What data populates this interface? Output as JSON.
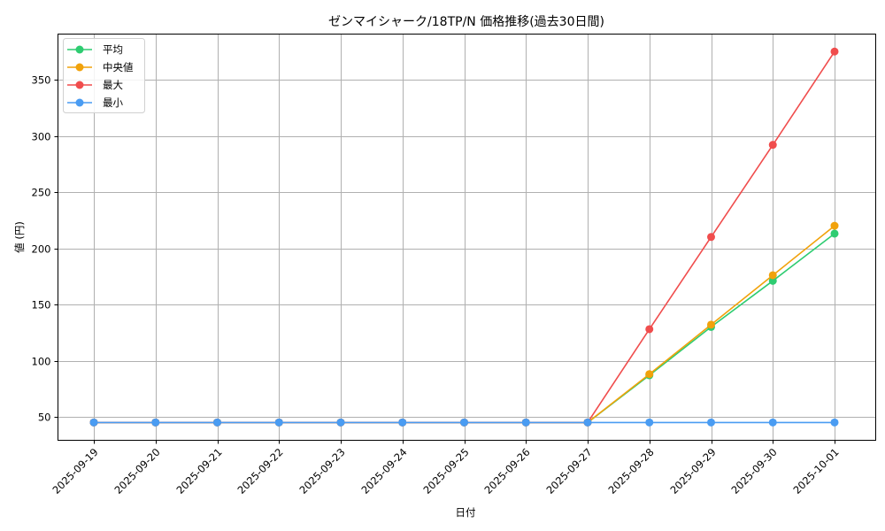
{
  "chart_data": {
    "type": "line",
    "title": "ゼンマイシャーク/18TP/N 価格推移(過去30日間)",
    "xlabel": "日付",
    "ylabel": "値 (円)",
    "categories": [
      "2025-09-19",
      "2025-09-20",
      "2025-09-21",
      "2025-09-22",
      "2025-09-23",
      "2025-09-24",
      "2025-09-25",
      "2025-09-26",
      "2025-09-27",
      "2025-09-28",
      "2025-09-29",
      "2025-09-30",
      "2025-10-01"
    ],
    "series": [
      {
        "name": "平均",
        "color": "#2ecc71",
        "values": [
          45,
          45,
          45,
          45,
          45,
          45,
          45,
          45,
          45,
          87,
          130,
          171,
          213
        ]
      },
      {
        "name": "中央値",
        "color": "#f1a20b",
        "values": [
          45,
          45,
          45,
          45,
          45,
          45,
          45,
          45,
          45,
          88,
          132,
          176,
          220
        ]
      },
      {
        "name": "最大",
        "color": "#f04d4d",
        "values": [
          45,
          45,
          45,
          45,
          45,
          45,
          45,
          45,
          45,
          128,
          210,
          292,
          375
        ]
      },
      {
        "name": "最小",
        "color": "#4a9cf2",
        "values": [
          45,
          45,
          45,
          45,
          45,
          45,
          45,
          45,
          45,
          45,
          45,
          45,
          45
        ]
      }
    ],
    "yticks": [
      50,
      100,
      150,
      200,
      250,
      300,
      350
    ],
    "ylim": [
      29,
      391
    ],
    "grid": true,
    "legend_position": "upper left"
  }
}
